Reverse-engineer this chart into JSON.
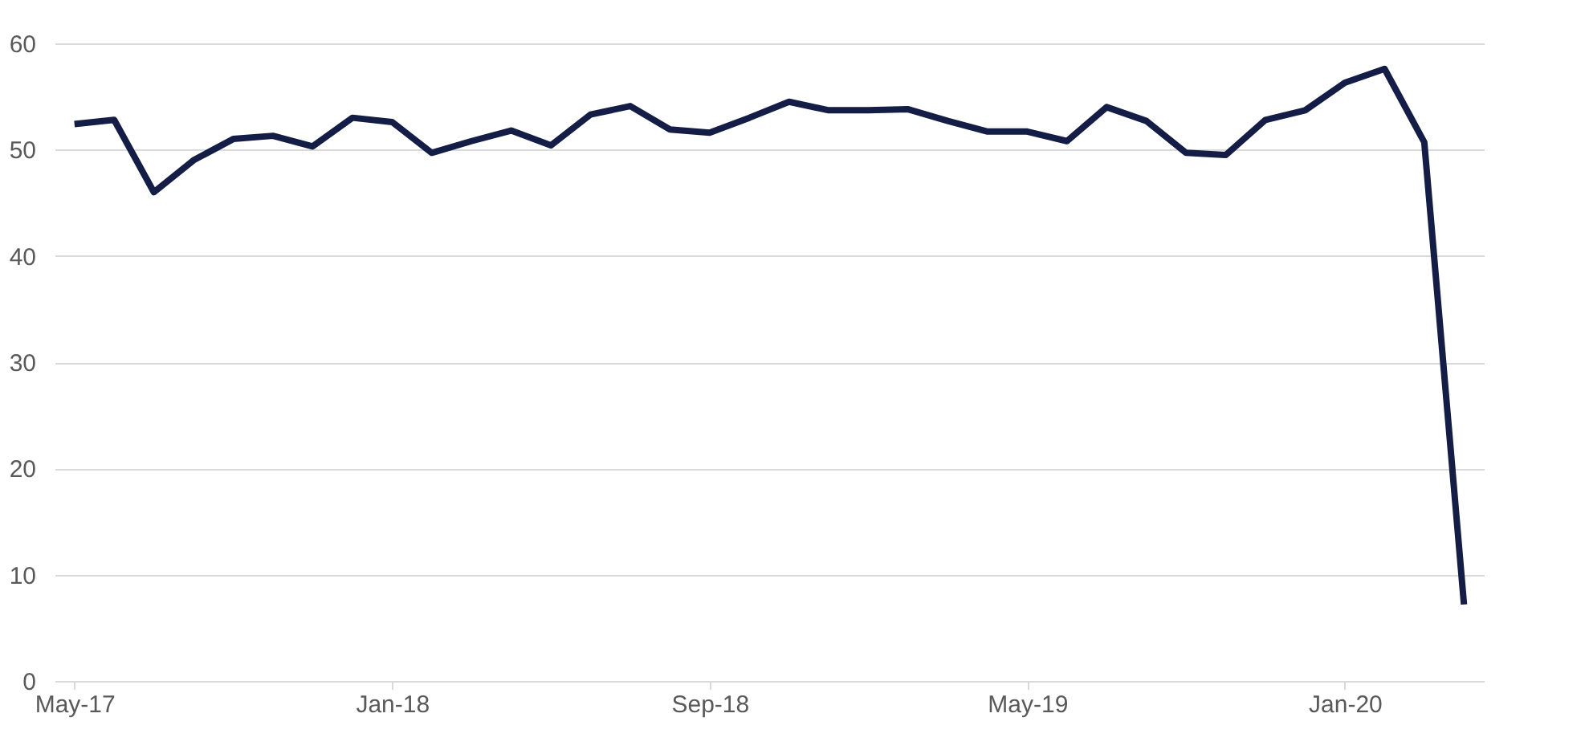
{
  "chart_data": {
    "type": "line",
    "categories": [
      "May-17",
      null,
      null,
      null,
      null,
      null,
      null,
      null,
      "Jan-18",
      null,
      null,
      null,
      null,
      null,
      null,
      null,
      "Sep-18",
      null,
      null,
      null,
      null,
      null,
      null,
      null,
      "May-19",
      null,
      null,
      null,
      null,
      null,
      null,
      null,
      "Jan-20",
      null,
      null,
      null
    ],
    "series": [
      {
        "color": "#131d45",
        "values": [
          52.4,
          52.8,
          46.0,
          49.0,
          51.0,
          51.3,
          50.3,
          53.0,
          52.6,
          49.7,
          50.8,
          51.8,
          50.4,
          53.3,
          54.1,
          51.9,
          51.6,
          53.0,
          54.5,
          53.7,
          53.7,
          53.8,
          52.7,
          51.7,
          51.7,
          50.8,
          54.0,
          52.7,
          49.7,
          49.5,
          52.8,
          53.7,
          56.3,
          57.6,
          50.7,
          7.2
        ]
      }
    ],
    "ylim": [
      0,
      60
    ],
    "yticks": [
      0,
      10,
      20,
      30,
      40,
      50,
      60
    ],
    "grid": "y",
    "legend": false,
    "marker": "none",
    "line_style": "solid"
  }
}
